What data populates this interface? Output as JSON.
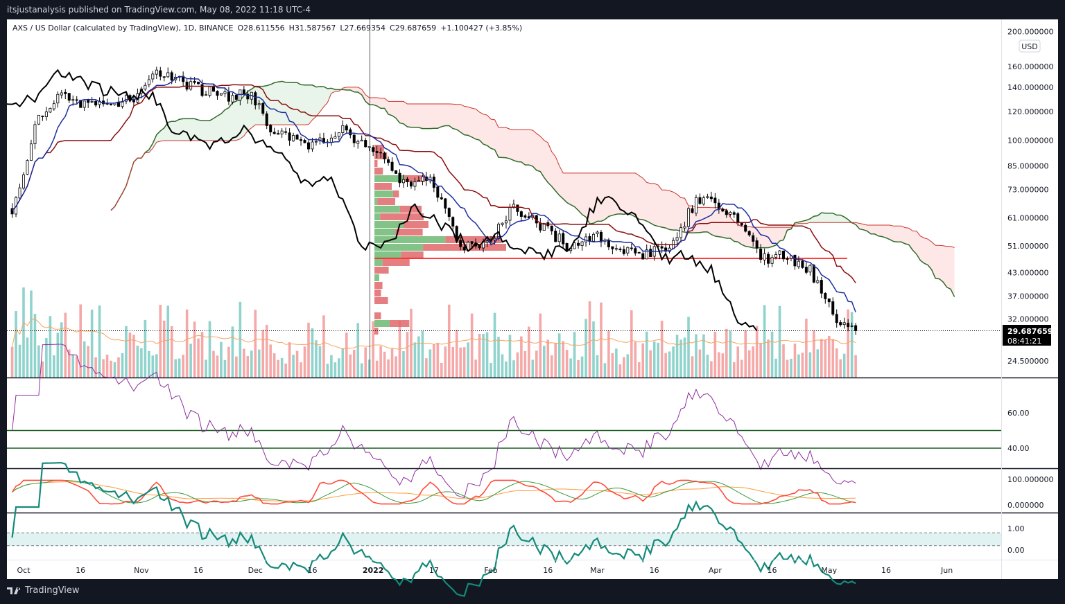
{
  "header": {
    "published": "itsjustanalysis published on TradingView.com, May 08, 2022 11:18 UTC-4"
  },
  "legend": {
    "symbol": "AXS / US Dollar (calculated by TradingView), 1D, BINANCE",
    "open": "O28.611556",
    "high": "H31.587567",
    "low": "L27.669354",
    "close": "C29.687659",
    "change": "+1.100427 (+3.85%)"
  },
  "price_axis": {
    "currency": "USD",
    "ticks": [
      "200.000000",
      "160.000000",
      "140.000000",
      "120.000000",
      "100.000000",
      "85.000000",
      "73.000000",
      "61.000000",
      "51.000000",
      "43.000000",
      "37.000000",
      "32.000000",
      "24.500000"
    ],
    "last_price": "29.687659",
    "countdown": "08:41:21"
  },
  "rsi_axis": {
    "ticks": [
      "60.00",
      "40.00"
    ],
    "levels": [
      50,
      40
    ]
  },
  "stoch_axis": {
    "ticks": [
      "100.000000",
      "0.000000"
    ]
  },
  "osc_axis": {
    "ticks": [
      "1.00",
      "0.00"
    ],
    "band": [
      0.2,
      0.8
    ]
  },
  "time_axis": [
    {
      "label": "Oct",
      "date": "2021-10-01"
    },
    {
      "label": "16",
      "date": "2021-10-16"
    },
    {
      "label": "Nov",
      "date": "2021-11-01"
    },
    {
      "label": "16",
      "date": "2021-11-16"
    },
    {
      "label": "Dec",
      "date": "2021-12-01"
    },
    {
      "label": "16",
      "date": "2021-12-16"
    },
    {
      "label": "2022",
      "date": "2022-01-01"
    },
    {
      "label": "17",
      "date": "2022-01-17"
    },
    {
      "label": "Feb",
      "date": "2022-02-01"
    },
    {
      "label": "16",
      "date": "2022-02-16"
    },
    {
      "label": "Mar",
      "date": "2022-03-01"
    },
    {
      "label": "16",
      "date": "2022-03-16"
    },
    {
      "label": "Apr",
      "date": "2022-04-01"
    },
    {
      "label": "16",
      "date": "2022-04-16"
    },
    {
      "label": "May",
      "date": "2022-05-01"
    },
    {
      "label": "16",
      "date": "2022-05-16"
    },
    {
      "label": "Jun",
      "date": "2022-06-01"
    }
  ],
  "footer": {
    "brand": "TradingView"
  },
  "colors": {
    "tenkan": "#1c2f9e",
    "kijun": "#8b0a0a",
    "span_a": "#2f6b2a",
    "span_b": "#c9332b",
    "lagging": "#000000",
    "vol_up": "#8fd3cc",
    "vol_down": "#f5a8a8",
    "poc": "#ff0000",
    "vp_up": "#6fb873",
    "vp_down": "#e0676a",
    "rsi": "#8e2ca0",
    "stoch_k": "#ff4b3a",
    "stoch_ma1": "#3a9a3a",
    "stoch_ma2": "#ff9a3a",
    "osc": "#148a7a",
    "osc_band": "#e0f2f1"
  },
  "chart_data": {
    "type": "candlestick",
    "scale": "log",
    "ylim": [
      22,
      210
    ],
    "xlim": [
      "2021-09-28",
      "2022-06-03"
    ],
    "close_keypoints": [
      [
        "2021-09-28",
        65
      ],
      [
        "2021-10-01",
        81
      ],
      [
        "2021-10-04",
        110
      ],
      [
        "2021-10-10",
        132
      ],
      [
        "2021-10-16",
        125
      ],
      [
        "2021-10-23",
        125
      ],
      [
        "2021-10-30",
        132
      ],
      [
        "2021-11-05",
        154
      ],
      [
        "2021-11-10",
        148
      ],
      [
        "2021-11-16",
        138
      ],
      [
        "2021-11-23",
        132
      ],
      [
        "2021-11-30",
        135
      ],
      [
        "2021-12-05",
        106
      ],
      [
        "2021-12-10",
        100
      ],
      [
        "2021-12-16",
        97
      ],
      [
        "2021-12-23",
        107
      ],
      [
        "2021-12-31",
        97
      ],
      [
        "2022-01-05",
        85
      ],
      [
        "2022-01-10",
        74
      ],
      [
        "2022-01-16",
        78
      ],
      [
        "2022-01-20",
        65
      ],
      [
        "2022-01-24",
        50
      ],
      [
        "2022-01-31",
        52
      ],
      [
        "2022-02-07",
        65
      ],
      [
        "2022-02-14",
        58
      ],
      [
        "2022-02-21",
        51
      ],
      [
        "2022-03-01",
        54
      ],
      [
        "2022-03-07",
        50
      ],
      [
        "2022-03-14",
        48
      ],
      [
        "2022-03-21",
        51
      ],
      [
        "2022-03-27",
        69
      ],
      [
        "2022-04-03",
        66
      ],
      [
        "2022-04-08",
        57
      ],
      [
        "2022-04-14",
        46.7
      ],
      [
        "2022-04-20",
        48
      ],
      [
        "2022-04-26",
        43.7
      ],
      [
        "2022-05-01",
        35
      ],
      [
        "2022-05-04",
        30.7
      ],
      [
        "2022-05-08",
        29.687659
      ]
    ],
    "last_close": 29.687659,
    "poc_price": 47.1,
    "volume_profile_start": "2022-01-01",
    "indicators": [
      "Ichimoku Cloud (9, 26, 52, 26)",
      "Volume",
      "Visible Range Volume Profile",
      "RSI 14",
      "Stochastic RSI",
      "Oscillator"
    ]
  }
}
